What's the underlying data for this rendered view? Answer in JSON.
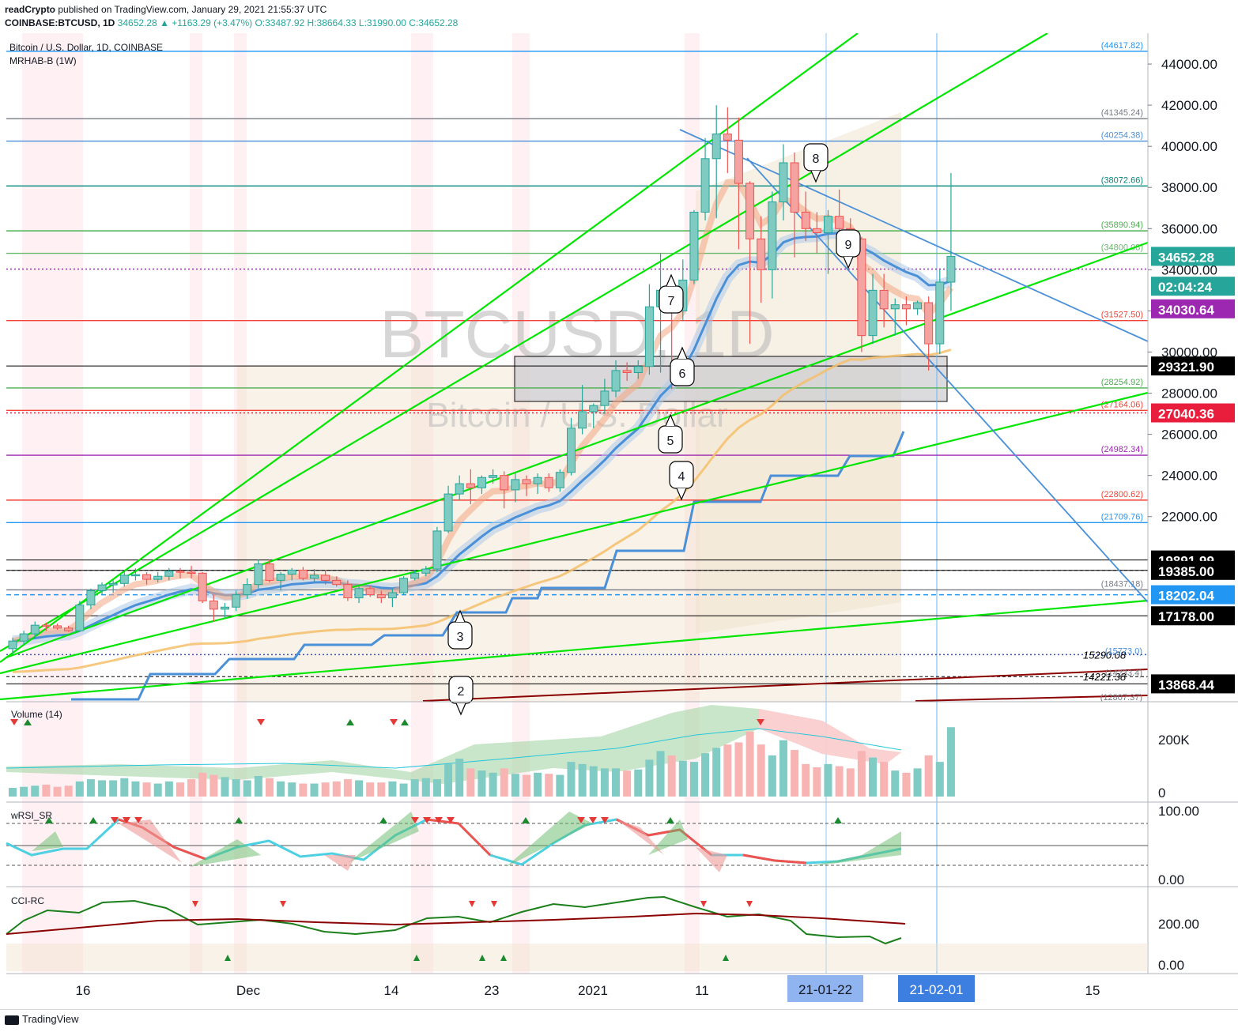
{
  "header": {
    "publisher": "readCrypto",
    "published_line": " published on TradingView.com, January 29, 2021 21:55:37 UTC",
    "symbol": "COINBASE:BTCUSD, 1D",
    "change": " 34652.28 ▲ +1163.29 (+3.47%) ",
    "ohlc": "O:33487.92 H:38664.33 L:31990.00 C:34652.28"
  },
  "chart_title": "Bitcoin / U.S. Dollar, 1D, COINBASE",
  "indicator_label": "MRHAB-B (1W)",
  "watermark": {
    "big": "BTCUSD, 1D",
    "small": "Bitcoin / U.S. Dollar"
  },
  "colors": {
    "up": "#26a69a",
    "down": "#ef5350",
    "cyan": "#4dd0e1",
    "green": "#00e600",
    "blue": "#4a90d9",
    "purple": "#9c27b0",
    "gold": "#f4c06a"
  },
  "chart_data": {
    "type": "candlestick",
    "title": "Bitcoin / U.S. Dollar, 1D, COINBASE",
    "ylim": [
      13000,
      45500
    ],
    "y_ticks": [
      "44000.00",
      "42000.00",
      "40000.00",
      "38000.00",
      "36000.00",
      "34000.00",
      "32000.00",
      "30000.00",
      "28000.00",
      "26000.00",
      "24000.00",
      "22000.00"
    ],
    "x_ticks": [
      "16",
      "Dec",
      "14",
      "23",
      "2021",
      "11",
      "15"
    ],
    "candles": [
      {
        "o": 15580,
        "h": 16100,
        "l": 15300,
        "c": 15950
      },
      {
        "o": 15950,
        "h": 16450,
        "l": 15800,
        "c": 16300
      },
      {
        "o": 16300,
        "h": 16900,
        "l": 16100,
        "c": 16720
      },
      {
        "o": 16720,
        "h": 16850,
        "l": 16450,
        "c": 16690
      },
      {
        "o": 16690,
        "h": 16800,
        "l": 16500,
        "c": 16580
      },
      {
        "o": 16580,
        "h": 16700,
        "l": 16400,
        "c": 16450
      },
      {
        "o": 16450,
        "h": 17900,
        "l": 16400,
        "c": 17700
      },
      {
        "o": 17700,
        "h": 18500,
        "l": 17500,
        "c": 18400
      },
      {
        "o": 18400,
        "h": 18800,
        "l": 18200,
        "c": 18680
      },
      {
        "o": 18680,
        "h": 18900,
        "l": 18300,
        "c": 18750
      },
      {
        "o": 18750,
        "h": 19400,
        "l": 18600,
        "c": 19150
      },
      {
        "o": 19150,
        "h": 19480,
        "l": 18900,
        "c": 19180
      },
      {
        "o": 19180,
        "h": 19300,
        "l": 18700,
        "c": 18950
      },
      {
        "o": 18950,
        "h": 19300,
        "l": 18800,
        "c": 19100
      },
      {
        "o": 19100,
        "h": 19500,
        "l": 18900,
        "c": 19350
      },
      {
        "o": 19350,
        "h": 19500,
        "l": 19000,
        "c": 19300
      },
      {
        "o": 19300,
        "h": 19600,
        "l": 19000,
        "c": 19250
      },
      {
        "o": 19250,
        "h": 19300,
        "l": 17800,
        "c": 17900
      },
      {
        "o": 17900,
        "h": 18200,
        "l": 16900,
        "c": 17500
      },
      {
        "o": 17500,
        "h": 17800,
        "l": 17100,
        "c": 17600
      },
      {
        "o": 17600,
        "h": 18400,
        "l": 17400,
        "c": 18200
      },
      {
        "o": 18200,
        "h": 19000,
        "l": 18000,
        "c": 18700
      },
      {
        "o": 18700,
        "h": 19900,
        "l": 18500,
        "c": 19700
      },
      {
        "o": 19700,
        "h": 19900,
        "l": 18800,
        "c": 18900
      },
      {
        "o": 18900,
        "h": 19300,
        "l": 18400,
        "c": 19200
      },
      {
        "o": 19200,
        "h": 19500,
        "l": 18900,
        "c": 19400
      },
      {
        "o": 19400,
        "h": 19550,
        "l": 18900,
        "c": 19000
      },
      {
        "o": 19000,
        "h": 19450,
        "l": 18800,
        "c": 19150
      },
      {
        "o": 19150,
        "h": 19400,
        "l": 18700,
        "c": 18900
      },
      {
        "o": 18900,
        "h": 19100,
        "l": 18600,
        "c": 18700
      },
      {
        "o": 18700,
        "h": 18900,
        "l": 17900,
        "c": 18050
      },
      {
        "o": 18050,
        "h": 18600,
        "l": 17800,
        "c": 18500
      },
      {
        "o": 18500,
        "h": 18650,
        "l": 18100,
        "c": 18200
      },
      {
        "o": 18200,
        "h": 18400,
        "l": 17800,
        "c": 18050
      },
      {
        "o": 18050,
        "h": 18500,
        "l": 17600,
        "c": 18300
      },
      {
        "o": 18300,
        "h": 19100,
        "l": 18200,
        "c": 19000
      },
      {
        "o": 19000,
        "h": 19400,
        "l": 18900,
        "c": 19250
      },
      {
        "o": 19250,
        "h": 19600,
        "l": 19100,
        "c": 19450
      },
      {
        "o": 19450,
        "h": 21500,
        "l": 19300,
        "c": 21300
      },
      {
        "o": 21300,
        "h": 23500,
        "l": 21200,
        "c": 23100
      },
      {
        "o": 23100,
        "h": 24000,
        "l": 22800,
        "c": 23600
      },
      {
        "o": 23600,
        "h": 24300,
        "l": 22600,
        "c": 23400
      },
      {
        "o": 23400,
        "h": 24000,
        "l": 23100,
        "c": 23900
      },
      {
        "o": 23900,
        "h": 24300,
        "l": 23600,
        "c": 24000
      },
      {
        "o": 24000,
        "h": 24200,
        "l": 22400,
        "c": 23300
      },
      {
        "o": 23300,
        "h": 24100,
        "l": 22700,
        "c": 23800
      },
      {
        "o": 23800,
        "h": 24000,
        "l": 23000,
        "c": 23600
      },
      {
        "o": 23600,
        "h": 24100,
        "l": 23100,
        "c": 23900
      },
      {
        "o": 23900,
        "h": 24100,
        "l": 23200,
        "c": 23400
      },
      {
        "o": 23400,
        "h": 24300,
        "l": 23200,
        "c": 24150
      },
      {
        "o": 24150,
        "h": 26800,
        "l": 24000,
        "c": 26300
      },
      {
        "o": 26300,
        "h": 28400,
        "l": 26000,
        "c": 27100
      },
      {
        "o": 27100,
        "h": 27500,
        "l": 26300,
        "c": 27400
      },
      {
        "o": 27400,
        "h": 28700,
        "l": 27000,
        "c": 28100
      },
      {
        "o": 28100,
        "h": 29600,
        "l": 27800,
        "c": 29100
      },
      {
        "o": 29100,
        "h": 29500,
        "l": 28600,
        "c": 29000
      },
      {
        "o": 29000,
        "h": 29600,
        "l": 28700,
        "c": 29300
      },
      {
        "o": 29300,
        "h": 33300,
        "l": 28900,
        "c": 32200
      },
      {
        "o": 32200,
        "h": 34800,
        "l": 29000,
        "c": 33000
      },
      {
        "o": 33000,
        "h": 33600,
        "l": 28200,
        "c": 32000
      },
      {
        "o": 32000,
        "h": 34500,
        "l": 31500,
        "c": 33500
      },
      {
        "o": 33500,
        "h": 36900,
        "l": 33300,
        "c": 36800
      },
      {
        "o": 36800,
        "h": 40400,
        "l": 36400,
        "c": 39400
      },
      {
        "o": 39400,
        "h": 42000,
        "l": 36500,
        "c": 40600
      },
      {
        "o": 40600,
        "h": 41900,
        "l": 38700,
        "c": 40300
      },
      {
        "o": 40300,
        "h": 41400,
        "l": 35000,
        "c": 38200
      },
      {
        "o": 38200,
        "h": 38300,
        "l": 30400,
        "c": 35500
      },
      {
        "o": 35500,
        "h": 36600,
        "l": 32400,
        "c": 34000
      },
      {
        "o": 34000,
        "h": 37800,
        "l": 32600,
        "c": 37300
      },
      {
        "o": 37300,
        "h": 40100,
        "l": 36400,
        "c": 39200
      },
      {
        "o": 39200,
        "h": 39700,
        "l": 34600,
        "c": 36800
      },
      {
        "o": 36800,
        "h": 37800,
        "l": 35400,
        "c": 36000
      },
      {
        "o": 36000,
        "h": 36800,
        "l": 34800,
        "c": 35800
      },
      {
        "o": 35800,
        "h": 36900,
        "l": 33800,
        "c": 36600
      },
      {
        "o": 36600,
        "h": 37900,
        "l": 35700,
        "c": 36000
      },
      {
        "o": 36000,
        "h": 36500,
        "l": 34900,
        "c": 35500
      },
      {
        "o": 35500,
        "h": 35600,
        "l": 30000,
        "c": 30800
      },
      {
        "o": 30800,
        "h": 33800,
        "l": 30400,
        "c": 33000
      },
      {
        "o": 33000,
        "h": 33800,
        "l": 31200,
        "c": 32100
      },
      {
        "o": 32100,
        "h": 32600,
        "l": 30800,
        "c": 32300
      },
      {
        "o": 32300,
        "h": 32700,
        "l": 31300,
        "c": 32100
      },
      {
        "o": 32100,
        "h": 32500,
        "l": 31800,
        "c": 32400
      },
      {
        "o": 32400,
        "h": 32700,
        "l": 29100,
        "c": 30400
      },
      {
        "o": 30400,
        "h": 34000,
        "l": 29900,
        "c": 33400
      },
      {
        "o": 33400,
        "h": 38700,
        "l": 32000,
        "c": 34652
      }
    ],
    "levels": [
      {
        "value": 44617.82,
        "label": "(44617.82)",
        "color": "#2196f3"
      },
      {
        "value": 41345.24,
        "label": "(41345.24)",
        "color": "#787b86"
      },
      {
        "value": 40254.38,
        "label": "(40254.38)",
        "color": "#4a90d9"
      },
      {
        "value": 38072.66,
        "label": "(38072.66)",
        "color": "#00897b"
      },
      {
        "value": 35890.94,
        "label": "(35890.94)",
        "color": "#4caf50"
      },
      {
        "value": 34800.08,
        "label": "(34800.08)",
        "color": "#66bb6a"
      },
      {
        "value": 31527.5,
        "label": "(31527.50)",
        "color": "#f44336"
      },
      {
        "value": 28254.92,
        "label": "(28254.92)",
        "color": "#4caf50"
      },
      {
        "value": 27164.06,
        "label": "(27164.06)",
        "color": "#f44336"
      },
      {
        "value": 24982.34,
        "label": "(24982.34)",
        "color": "#9c27b0"
      },
      {
        "value": 22800.62,
        "label": "(22800.62)",
        "color": "#f44336"
      },
      {
        "value": 21709.76,
        "label": "(21709.76)",
        "color": "#2196f3"
      },
      {
        "value": 18437.18,
        "label": "(18437.18)",
        "color": "#787b86"
      }
    ],
    "price_tags": [
      {
        "value": 34652.28,
        "label": "34652.28",
        "bg": "#26a69a",
        "fg": "#ffffff"
      },
      {
        "value": 33200.0,
        "label": "02:04:24",
        "bg": "#26a69a",
        "fg": "#ffffff"
      },
      {
        "value": 32100.0,
        "label": "34030.64",
        "bg": "#9c27b0",
        "fg": "#ffffff"
      },
      {
        "value": 29321.9,
        "label": "29321.90",
        "bg": "#000000",
        "fg": "#ffffff"
      },
      {
        "value": 27040.36,
        "label": "27040.36",
        "bg": "#e91e3c",
        "fg": "#ffffff"
      },
      {
        "value": 19891.99,
        "label": "19891.99",
        "bg": "#000000",
        "fg": "#ffffff"
      },
      {
        "value": 19385.0,
        "label": "19385.00",
        "bg": "#000000",
        "fg": "#ffffff"
      },
      {
        "value": 18202.04,
        "label": "18202.04",
        "bg": "#2196f3",
        "fg": "#ffffff"
      },
      {
        "value": 17178.0,
        "label": "17178.00",
        "bg": "#000000",
        "fg": "#ffffff"
      },
      {
        "value": 13868.44,
        "label": "13868.44",
        "bg": "#000000",
        "fg": "#ffffff"
      }
    ],
    "small_labels": [
      "15290.08",
      "14221.38",
      "(15773.0)",
      "(14233.4)",
      "(12807.37)"
    ],
    "callouts": [
      "2",
      "3",
      "4",
      "5",
      "6",
      "7",
      "8",
      "9"
    ],
    "volume": {
      "label": "Volume (14)",
      "ticks": [
        "200K",
        "0"
      ],
      "values": [
        8,
        9,
        10,
        11,
        9,
        10,
        14,
        16,
        15,
        15,
        17,
        14,
        13,
        12,
        14,
        13,
        16,
        22,
        20,
        18,
        16,
        15,
        19,
        17,
        14,
        13,
        12,
        12,
        13,
        14,
        16,
        15,
        13,
        13,
        14,
        12,
        16,
        17,
        16,
        30,
        35,
        26,
        24,
        22,
        26,
        21,
        20,
        22,
        21,
        20,
        32,
        30,
        28,
        26,
        26,
        24,
        25,
        34,
        42,
        38,
        33,
        32,
        40,
        45,
        48,
        50,
        60,
        48,
        38,
        52,
        43,
        30,
        27,
        30,
        28,
        26,
        42,
        36,
        32,
        24,
        22,
        26,
        38,
        32,
        64
      ]
    },
    "rsi": {
      "label": "wRSI_SR",
      "ticks": [
        "100.00",
        "0.00"
      ]
    },
    "cci": {
      "label": "CCI-RC",
      "ticks": [
        "200.00",
        "0.00"
      ]
    },
    "date_markers": [
      "21-01-22",
      "21-02-01"
    ]
  },
  "footer": {
    "brand": "TradingView"
  }
}
